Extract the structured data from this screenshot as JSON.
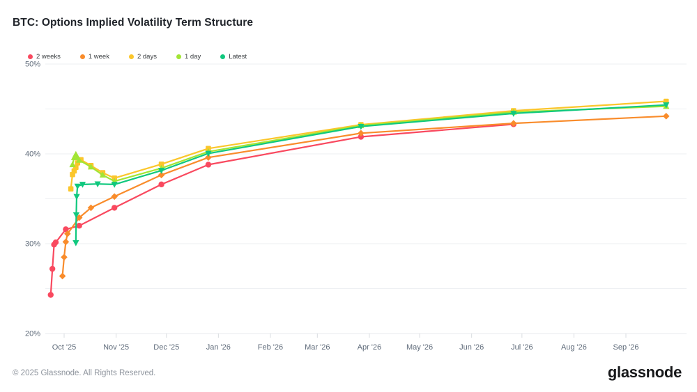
{
  "header": {
    "title": "BTC: Options Implied Volatility Term Structure"
  },
  "footer": {
    "copyright": "© 2025 Glassnode. All Rights Reserved.",
    "brand": "glassnode"
  },
  "chart_data": {
    "type": "line",
    "title": "BTC: Options Implied Volatility Term Structure",
    "grid": true,
    "legend_position": "top-left",
    "y_axis": {
      "unit": "%",
      "min": 20,
      "max": 50,
      "gridline_values": [
        20,
        25,
        30,
        35,
        40,
        45,
        50
      ],
      "labeled_ticks": [
        {
          "value": 50,
          "label": "50%"
        },
        {
          "value": 40,
          "label": "40%"
        },
        {
          "value": 30,
          "label": "30%"
        },
        {
          "value": 20,
          "label": "20%"
        }
      ]
    },
    "x_axis": {
      "months": [
        {
          "label": "Oct '25",
          "date": "2025-10-01"
        },
        {
          "label": "Nov '25",
          "date": "2025-11-01"
        },
        {
          "label": "Dec '25",
          "date": "2025-12-01"
        },
        {
          "label": "Jan '26",
          "date": "2026-01-01"
        },
        {
          "label": "Feb '26",
          "date": "2026-02-01"
        },
        {
          "label": "Mar '26",
          "date": "2026-03-01"
        },
        {
          "label": "Apr '26",
          "date": "2026-04-01"
        },
        {
          "label": "May '26",
          "date": "2026-05-01"
        },
        {
          "label": "Jun '26",
          "date": "2026-06-01"
        },
        {
          "label": "Jul '26",
          "date": "2026-07-01"
        },
        {
          "label": "Aug '26",
          "date": "2026-08-01"
        },
        {
          "label": "Sep '26",
          "date": "2026-09-01"
        }
      ]
    },
    "series": [
      {
        "name": "2 weeks",
        "color": "#F9495F",
        "marker": "circle",
        "points": [
          {
            "d": "2025-09-23",
            "v": 24.3
          },
          {
            "d": "2025-09-24",
            "v": 27.2
          },
          {
            "d": "2025-09-25",
            "v": 29.9
          },
          {
            "d": "2025-09-26",
            "v": 30.15
          },
          {
            "d": "2025-10-02",
            "v": 31.6
          },
          {
            "d": "2025-10-10",
            "v": 32.0
          },
          {
            "d": "2025-10-31",
            "v": 34.0
          },
          {
            "d": "2025-11-28",
            "v": 36.6
          },
          {
            "d": "2025-12-26",
            "v": 38.8
          },
          {
            "d": "2026-03-27",
            "v": 41.9
          },
          {
            "d": "2026-06-26",
            "v": 43.3
          }
        ]
      },
      {
        "name": "1 week",
        "color": "#F98C2B",
        "marker": "diamond",
        "points": [
          {
            "d": "2025-09-30",
            "v": 26.4
          },
          {
            "d": "2025-10-01",
            "v": 28.5
          },
          {
            "d": "2025-10-02",
            "v": 30.2
          },
          {
            "d": "2025-10-03",
            "v": 31.1
          },
          {
            "d": "2025-10-10",
            "v": 32.9
          },
          {
            "d": "2025-10-17",
            "v": 34.0
          },
          {
            "d": "2025-10-31",
            "v": 35.25
          },
          {
            "d": "2025-11-28",
            "v": 37.65
          },
          {
            "d": "2025-12-26",
            "v": 39.6
          },
          {
            "d": "2026-03-27",
            "v": 42.3
          },
          {
            "d": "2026-06-26",
            "v": 43.4
          },
          {
            "d": "2026-09-25",
            "v": 44.2
          }
        ]
      },
      {
        "name": "2 days",
        "color": "#FBC62B",
        "marker": "square",
        "points": [
          {
            "d": "2025-10-05",
            "v": 36.1
          },
          {
            "d": "2025-10-06",
            "v": 37.7
          },
          {
            "d": "2025-10-07",
            "v": 38.1
          },
          {
            "d": "2025-10-08",
            "v": 38.5
          },
          {
            "d": "2025-10-09",
            "v": 39.0
          },
          {
            "d": "2025-10-11",
            "v": 39.35
          },
          {
            "d": "2025-10-17",
            "v": 38.7
          },
          {
            "d": "2025-10-24",
            "v": 37.9
          },
          {
            "d": "2025-10-31",
            "v": 37.3
          },
          {
            "d": "2025-11-28",
            "v": 38.85
          },
          {
            "d": "2025-12-26",
            "v": 40.6
          },
          {
            "d": "2026-03-27",
            "v": 43.25
          },
          {
            "d": "2026-06-26",
            "v": 44.8
          },
          {
            "d": "2026-09-25",
            "v": 45.85
          }
        ]
      },
      {
        "name": "1 day",
        "color": "#A2E535",
        "marker": "triangle-up",
        "points": [
          {
            "d": "2025-10-06",
            "v": 38.8
          },
          {
            "d": "2025-10-07",
            "v": 39.6
          },
          {
            "d": "2025-10-08",
            "v": 39.95
          },
          {
            "d": "2025-10-09",
            "v": 39.6
          },
          {
            "d": "2025-10-10",
            "v": 39.3
          },
          {
            "d": "2025-10-17",
            "v": 38.55
          },
          {
            "d": "2025-10-24",
            "v": 37.65
          },
          {
            "d": "2025-10-31",
            "v": 36.95
          },
          {
            "d": "2025-11-28",
            "v": 38.4
          },
          {
            "d": "2025-12-26",
            "v": 40.25
          },
          {
            "d": "2026-03-27",
            "v": 43.15
          },
          {
            "d": "2026-06-26",
            "v": 44.65
          },
          {
            "d": "2026-09-25",
            "v": 45.3
          }
        ]
      },
      {
        "name": "Latest",
        "color": "#10C87E",
        "marker": "triangle-down",
        "points": [
          {
            "d": "2025-10-08T00:00:00Z",
            "v": 30.1
          },
          {
            "d": "2025-10-08T06:00:00Z",
            "v": 33.2
          },
          {
            "d": "2025-10-08T12:00:00Z",
            "v": 35.25
          },
          {
            "d": "2025-10-09",
            "v": 36.4
          },
          {
            "d": "2025-10-12",
            "v": 36.6
          },
          {
            "d": "2025-10-21",
            "v": 36.65
          },
          {
            "d": "2025-10-31",
            "v": 36.6
          },
          {
            "d": "2025-11-28",
            "v": 38.15
          },
          {
            "d": "2025-12-26",
            "v": 40.05
          },
          {
            "d": "2026-03-27",
            "v": 43.05
          },
          {
            "d": "2026-06-26",
            "v": 44.5
          },
          {
            "d": "2026-09-25",
            "v": 45.45
          }
        ]
      }
    ]
  }
}
